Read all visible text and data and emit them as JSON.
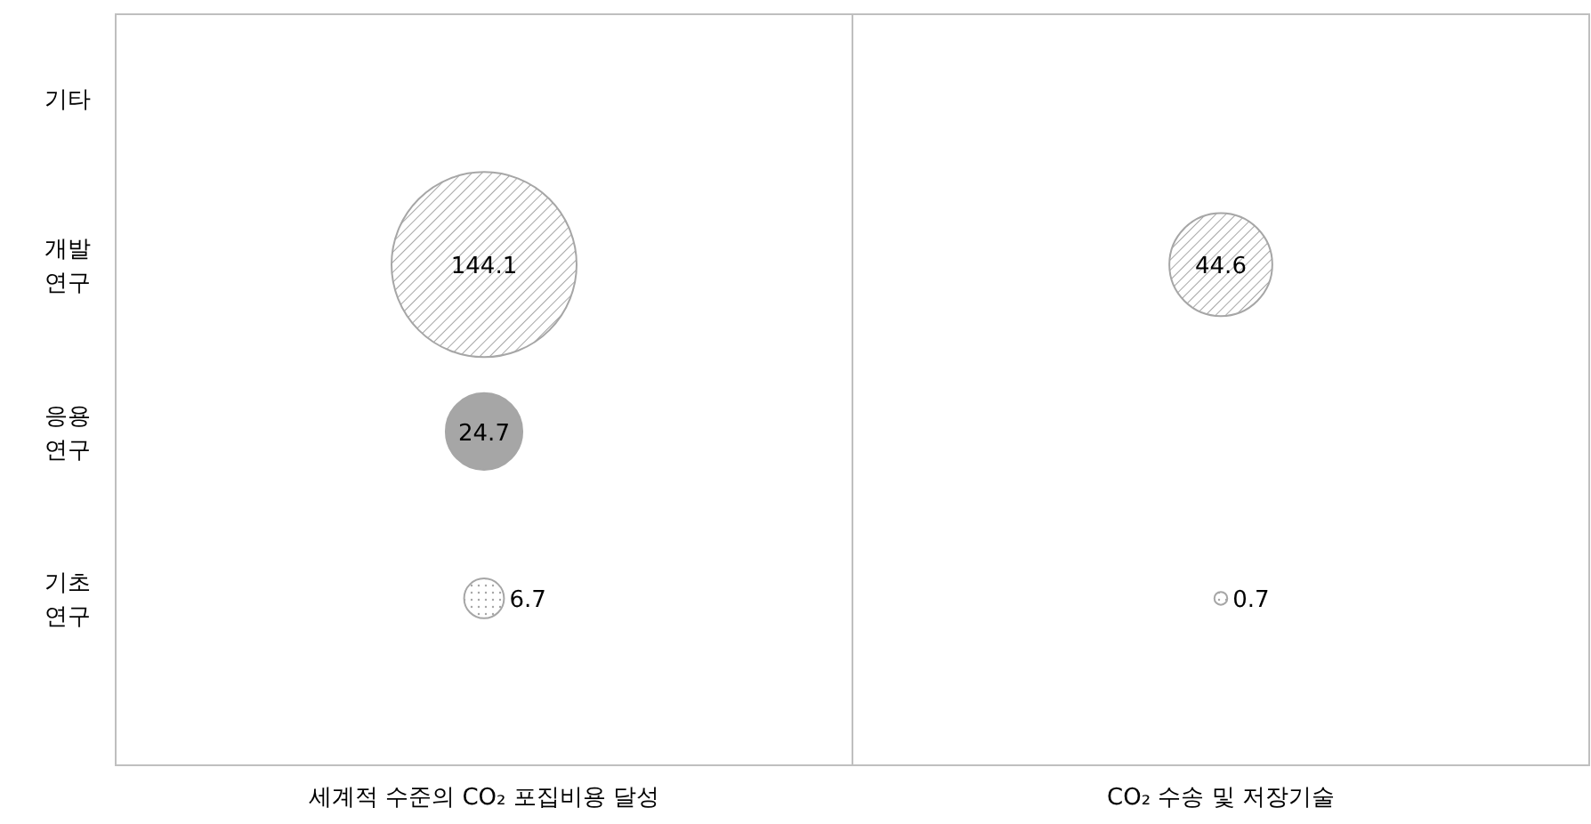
{
  "chart_data": {
    "type": "heatmap",
    "categories": [
      "세계적 수준의 CO₂ 포집비용 달성",
      "CO₂ 수송 및 저장기술"
    ],
    "y_categories": [
      "기타",
      "개발\n연구",
      "응용\n연구",
      "기초\n연구"
    ],
    "cells": [
      [
        null,
        null
      ],
      [
        144.1,
        44.6
      ],
      [
        24.7,
        null
      ],
      [
        6.7,
        0.7
      ]
    ],
    "colors": [
      null,
      "#a6a6a6",
      "#a6a6a6",
      "#a6a6a6"
    ],
    "data_labels": true,
    "grid": "x"
  }
}
